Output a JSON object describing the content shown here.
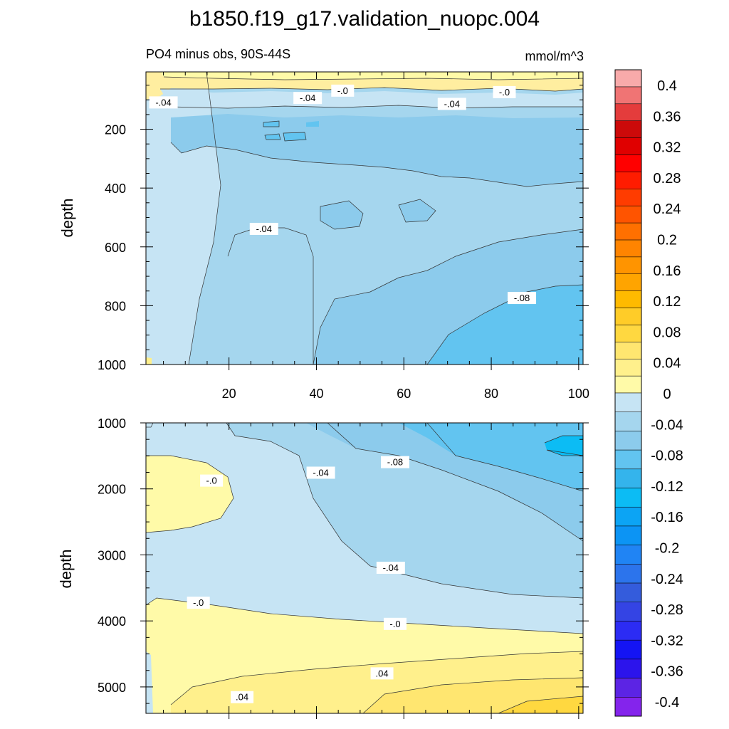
{
  "title": "b1850.f19_g17.validation_nuopc.004",
  "subtitle_left": "PO4 minus obs, 90S-44S",
  "subtitle_right": "mmol/m^3",
  "colors": {
    "neg": [
      "#c6e4f4",
      "#a5d6ee",
      "#8ccbec",
      "#62c4f0",
      "#34b4ec",
      "#0cbcf4",
      "#0ca4f4",
      "#0c94f4",
      "#2084f4",
      "#2c74ec",
      "#345cdc",
      "#3444e4",
      "#2c2cf4",
      "#1414f4",
      "#2c14ec",
      "#5c24e4",
      "#8424ec"
    ],
    "pos": [
      "#fffaa8",
      "#fff08c",
      "#ffe670",
      "#ffd840",
      "#ffcc28",
      "#ffba00",
      "#ffa400",
      "#ff9400",
      "#ff8400",
      "#ff7000",
      "#ff5400",
      "#ff3c00",
      "#ff1c00",
      "#ff0000",
      "#e00000",
      "#cc0a0a",
      "#e43c3c",
      "#f07474",
      "#f8aaaa"
    ]
  },
  "chart_data": [
    {
      "type": "contour",
      "panel": "upper",
      "variable": "PO4 minus obs",
      "region": "90S-44S",
      "units": "mmol/m^3",
      "xlabel": "",
      "ylabel": "depth",
      "xlim": [
        1,
        101
      ],
      "ylim": [
        1000,
        5
      ],
      "xticks": [
        "20",
        "40",
        "60",
        "80",
        "100"
      ],
      "yticks": [
        "200",
        "400",
        "600",
        "800",
        "1000"
      ],
      "contour_labels": [
        {
          "text": "-.04",
          "x": 5,
          "y": 110
        },
        {
          "text": "-.04",
          "x": 38,
          "y": 95
        },
        {
          "text": "-.0",
          "x": 46,
          "y": 70
        },
        {
          "text": "-.04",
          "x": 71,
          "y": 115
        },
        {
          "text": "-.0",
          "x": 83,
          "y": 75
        },
        {
          "text": "-.04",
          "x": 28,
          "y": 540
        },
        {
          "text": "-.08",
          "x": 87,
          "y": 775
        }
      ]
    },
    {
      "type": "contour",
      "panel": "lower",
      "variable": "PO4 minus obs",
      "region": "90S-44S",
      "units": "mmol/m^3",
      "xlabel": "",
      "ylabel": "depth",
      "xlim": [
        1,
        101
      ],
      "ylim": [
        5400,
        1000
      ],
      "yticks": [
        "1000",
        "2000",
        "3000",
        "4000",
        "5000"
      ],
      "contour_labels": [
        {
          "text": "-.0",
          "x": 16,
          "y": 1880
        },
        {
          "text": "-.04",
          "x": 41,
          "y": 1760
        },
        {
          "text": "-.08",
          "x": 58,
          "y": 1600
        },
        {
          "text": "-.04",
          "x": 57,
          "y": 3200
        },
        {
          "text": "-.0",
          "x": 13,
          "y": 3730
        },
        {
          "text": "-.0",
          "x": 58,
          "y": 4050
        },
        {
          "text": ".04",
          "x": 55,
          "y": 4800
        },
        {
          "text": ".04",
          "x": 23,
          "y": 5160
        }
      ]
    }
  ],
  "colorbar": {
    "labels": [
      "0.4",
      "0.36",
      "0.32",
      "0.28",
      "0.24",
      "0.2",
      "0.16",
      "0.12",
      "0.08",
      "0.04",
      "0",
      "-0.04",
      "-0.08",
      "-0.12",
      "-0.16",
      "-0.2",
      "-0.24",
      "-0.28",
      "-0.32",
      "-0.36",
      "-0.4"
    ]
  }
}
